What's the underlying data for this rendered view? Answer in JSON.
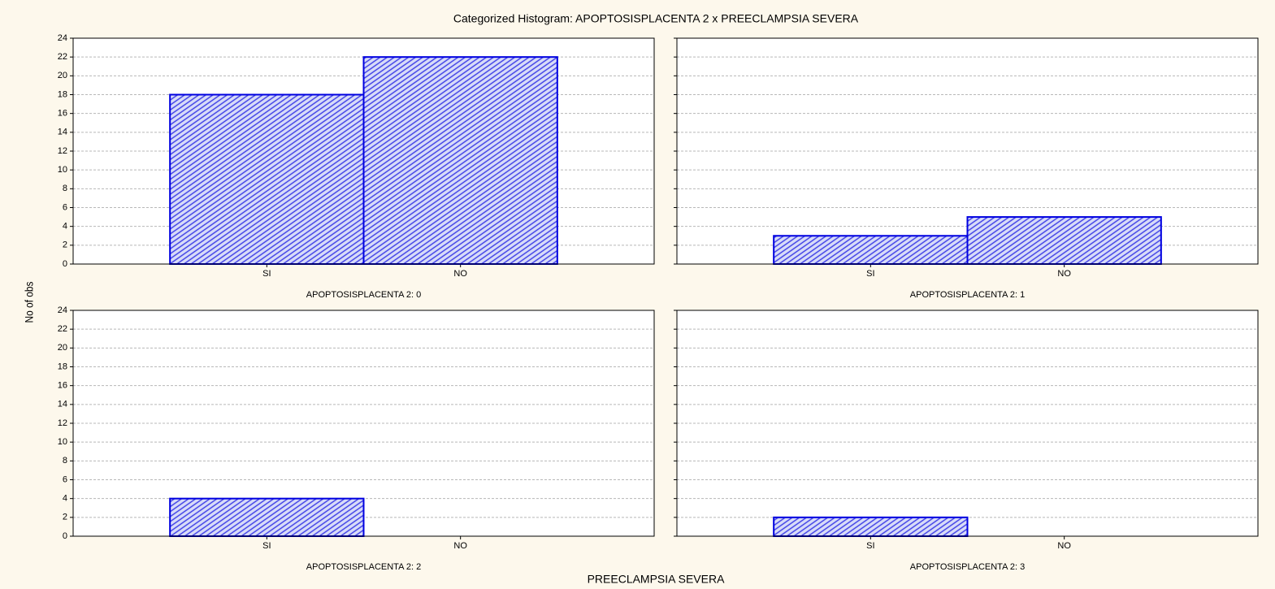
{
  "title": "Categorized Histogram: APOPTOSISPLACENTA 2 x PREECLAMPSIA SEVERA",
  "xlabel": "PREECLAMPSIA SEVERA",
  "ylabel": "No of obs",
  "chart_data": [
    {
      "type": "bar",
      "title": "APOPTOSISPLACENTA 2: 0",
      "categories": [
        "SI",
        "NO"
      ],
      "values": [
        18,
        22
      ],
      "color": "#0000e0",
      "ylim": [
        0,
        24
      ],
      "yticks": [
        0,
        2,
        4,
        6,
        8,
        10,
        12,
        14,
        16,
        18,
        20,
        22,
        24
      ],
      "grid": true,
      "ytick_labels": true
    },
    {
      "type": "bar",
      "title": "APOPTOSISPLACENTA 2: 1",
      "categories": [
        "SI",
        "NO"
      ],
      "values": [
        3,
        5
      ],
      "color": "#0000e0",
      "ylim": [
        0,
        24
      ],
      "yticks": [
        0,
        2,
        4,
        6,
        8,
        10,
        12,
        14,
        16,
        18,
        20,
        22,
        24
      ],
      "grid": true,
      "ytick_labels": false
    },
    {
      "type": "bar",
      "title": "APOPTOSISPLACENTA 2: 2",
      "categories": [
        "SI",
        "NO"
      ],
      "values": [
        4,
        0
      ],
      "color": "#0000e0",
      "ylim": [
        0,
        24
      ],
      "yticks": [
        0,
        2,
        4,
        6,
        8,
        10,
        12,
        14,
        16,
        18,
        20,
        22,
        24
      ],
      "grid": true,
      "ytick_labels": true
    },
    {
      "type": "bar",
      "title": "APOPTOSISPLACENTA 2: 3",
      "categories": [
        "SI",
        "NO"
      ],
      "values": [
        2,
        0
      ],
      "color": "#0000e0",
      "ylim": [
        0,
        24
      ],
      "yticks": [
        0,
        2,
        4,
        6,
        8,
        10,
        12,
        14,
        16,
        18,
        20,
        22,
        24
      ],
      "grid": true,
      "ytick_labels": false
    }
  ]
}
